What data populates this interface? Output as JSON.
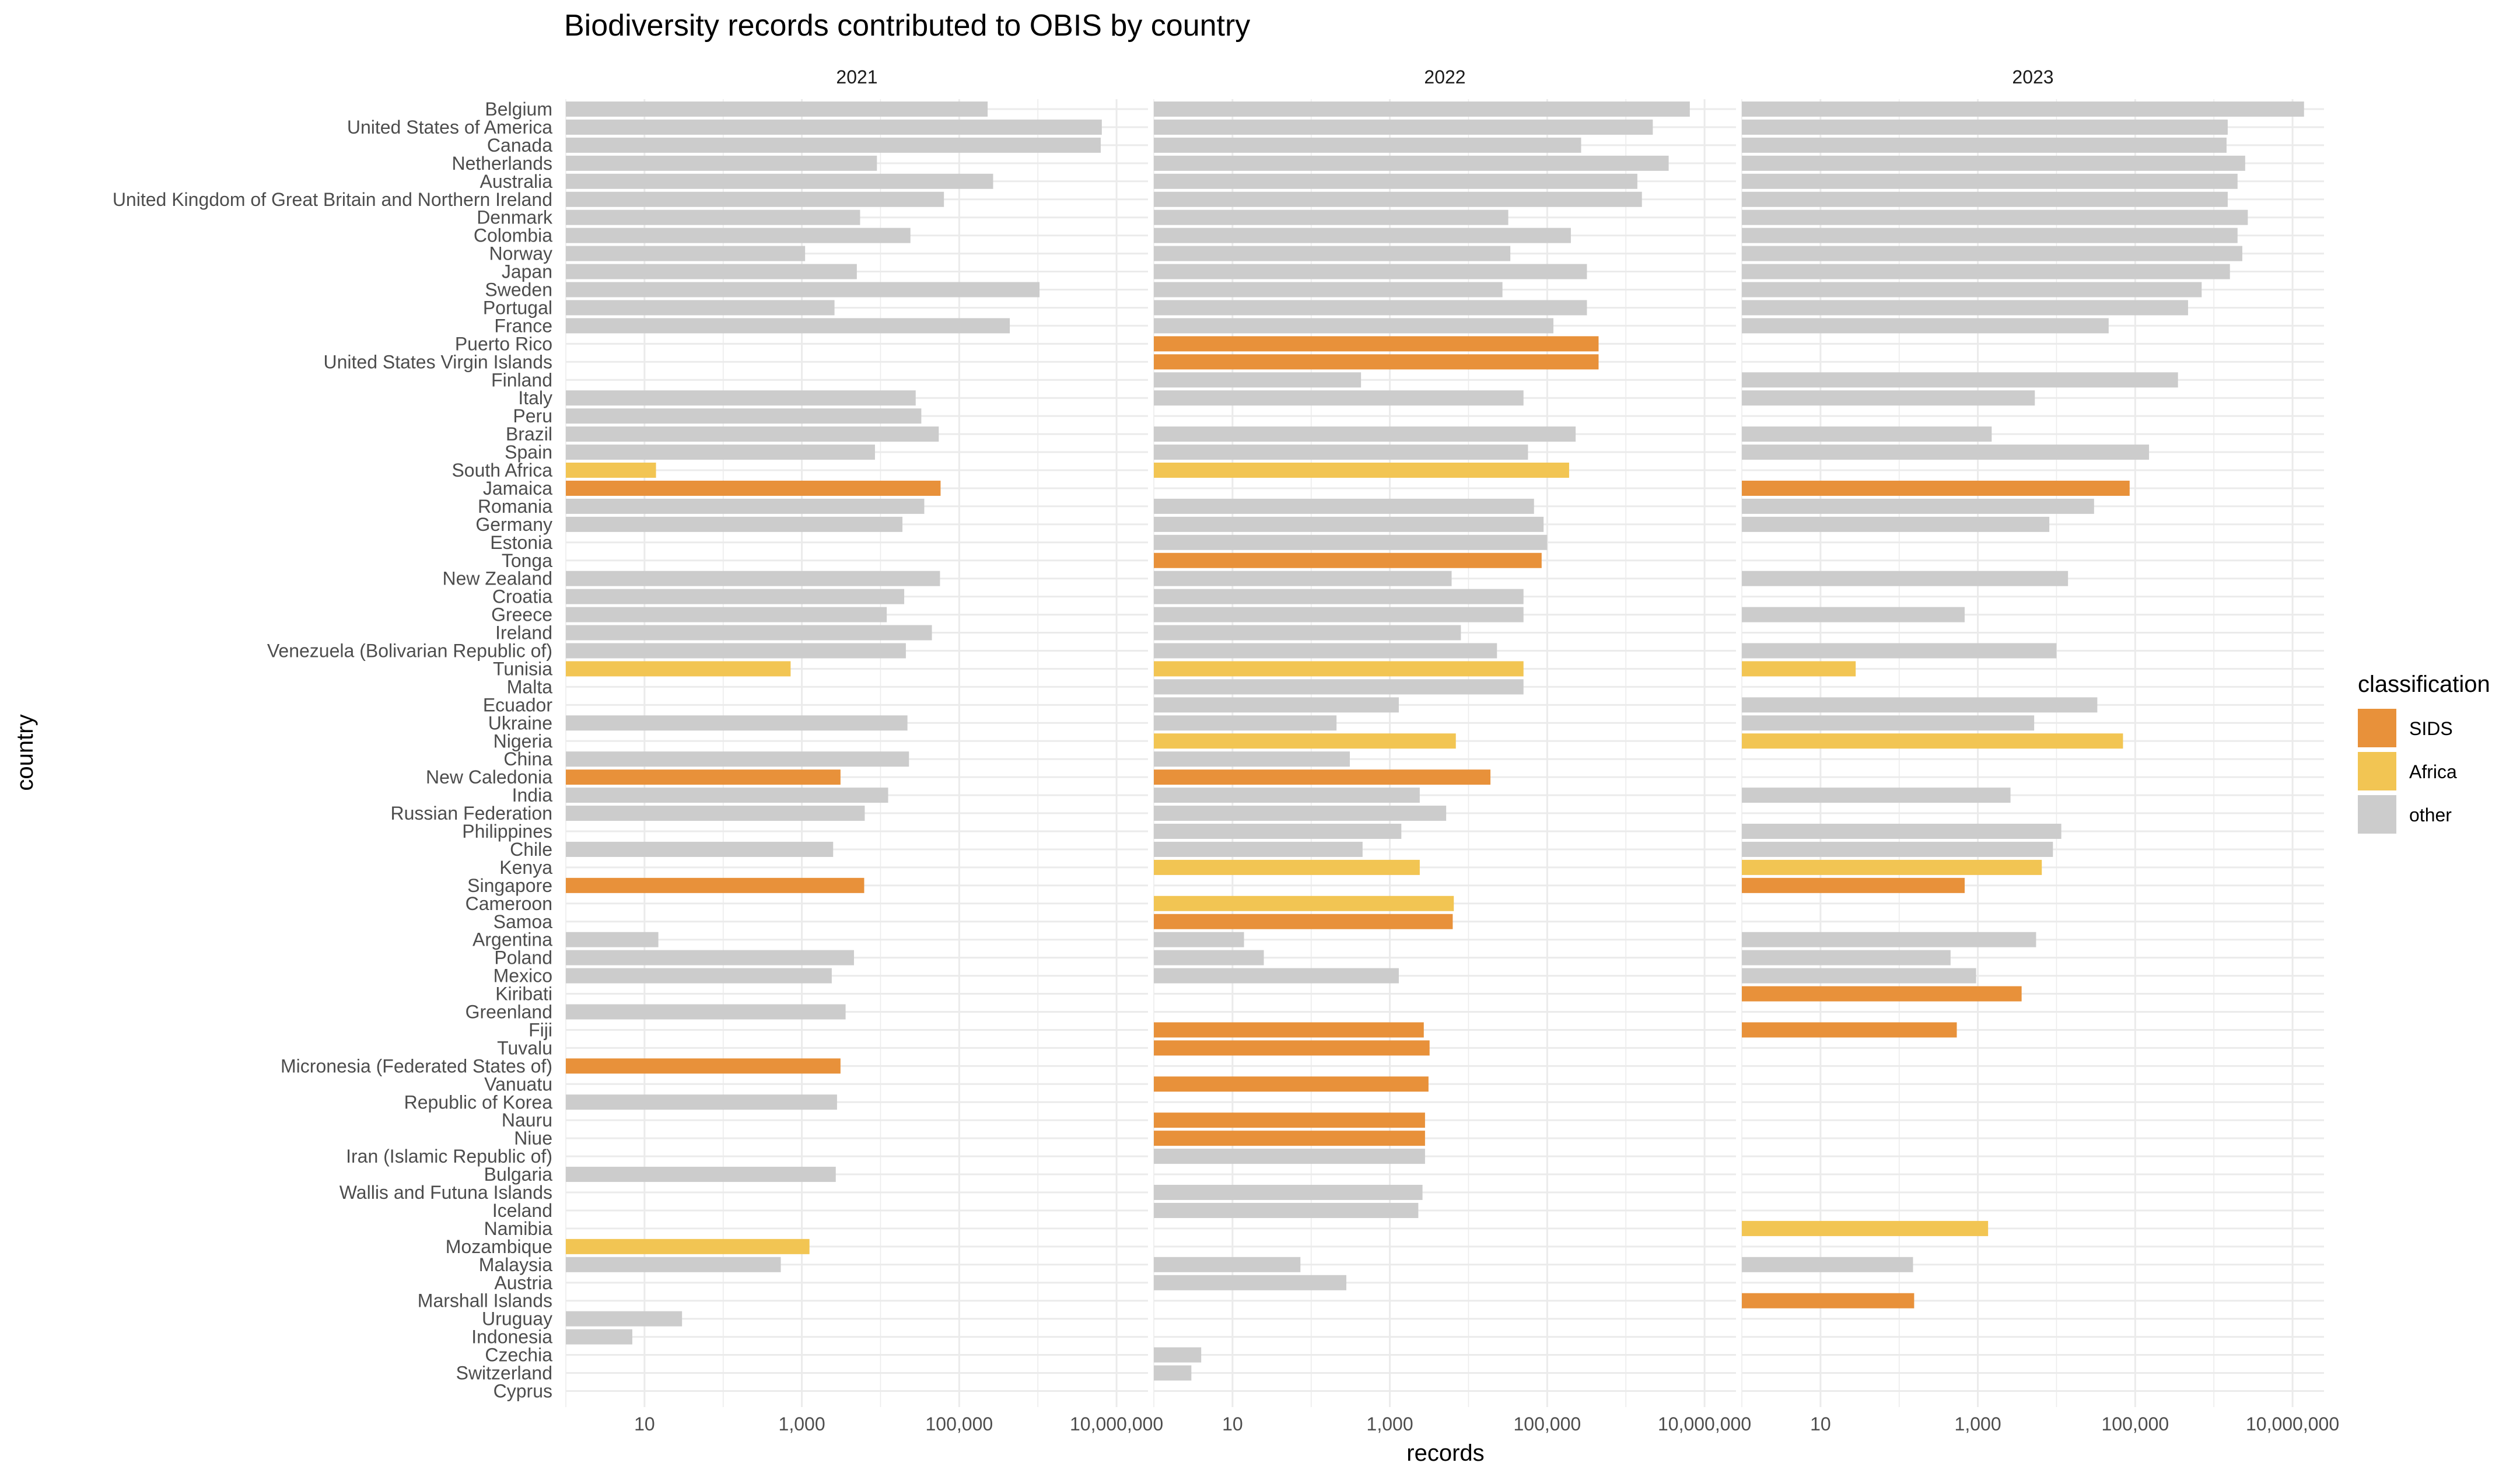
{
  "chart_data": {
    "type": "bar",
    "orientation": "horizontal",
    "title": "Biodiversity records contributed to OBIS by country",
    "xlabel": "records",
    "ylabel": "country",
    "x_scale": "log10",
    "x_ticks": [
      10,
      1000,
      100000,
      10000000
    ],
    "x_tick_labels": [
      "10",
      "1,000",
      "100,000",
      "10,000,000"
    ],
    "xlim": [
      1,
      15000000
    ],
    "grid": true,
    "legend": {
      "title": "classification",
      "placement": "right",
      "entries": [
        {
          "label": "SIDS",
          "color": "#E8913A"
        },
        {
          "label": "Africa",
          "color": "#F2C553"
        },
        {
          "label": "other",
          "color": "#CCCCCC"
        }
      ]
    },
    "panels": [
      "2021",
      "2022",
      "2023"
    ],
    "countries": [
      {
        "name": "Belgium",
        "class": "other",
        "values": [
          230000,
          6500000,
          14000000
        ]
      },
      {
        "name": "United States of America",
        "class": "other",
        "values": [
          6500000,
          2200000,
          1500000
        ]
      },
      {
        "name": "Canada",
        "class": "other",
        "values": [
          6300000,
          270000,
          1450000
        ]
      },
      {
        "name": "Netherlands",
        "class": "other",
        "values": [
          9000,
          3500000,
          2500000
        ]
      },
      {
        "name": "Australia",
        "class": "other",
        "values": [
          270000,
          1400000,
          2000000
        ]
      },
      {
        "name": "United Kingdom of Great Britain and Northern Ireland",
        "class": "other",
        "values": [
          64000,
          1600000,
          1500000
        ]
      },
      {
        "name": "Denmark",
        "class": "other",
        "values": [
          5500,
          32000,
          2700000
        ]
      },
      {
        "name": "Colombia",
        "class": "other",
        "values": [
          24000,
          200000,
          2000000
        ]
      },
      {
        "name": "Norway",
        "class": "other",
        "values": [
          1100,
          34000,
          2300000
        ]
      },
      {
        "name": "Japan",
        "class": "other",
        "values": [
          5000,
          320000,
          1600000
        ]
      },
      {
        "name": "Sweden",
        "class": "other",
        "values": [
          1050000,
          27000,
          700000
        ]
      },
      {
        "name": "Portugal",
        "class": "other",
        "values": [
          2600,
          320000,
          470000
        ]
      },
      {
        "name": "France",
        "class": "other",
        "values": [
          440000,
          120000,
          46000
        ]
      },
      {
        "name": "Puerto Rico",
        "class": "SIDS",
        "values": [
          null,
          450000,
          null
        ]
      },
      {
        "name": "United States Virgin Islands",
        "class": "SIDS",
        "values": [
          null,
          450000,
          null
        ]
      },
      {
        "name": "Finland",
        "class": "other",
        "values": [
          null,
          430,
          350000
        ]
      },
      {
        "name": "Italy",
        "class": "other",
        "values": [
          28000,
          50000,
          5300
        ]
      },
      {
        "name": "Peru",
        "class": "other",
        "values": [
          33000,
          null,
          null
        ]
      },
      {
        "name": "Brazil",
        "class": "other",
        "values": [
          55000,
          230000,
          1500
        ]
      },
      {
        "name": "Spain",
        "class": "other",
        "values": [
          8500,
          57000,
          150000
        ]
      },
      {
        "name": "South Africa",
        "class": "Africa",
        "values": [
          14,
          190000,
          null
        ]
      },
      {
        "name": "Jamaica",
        "class": "SIDS",
        "values": [
          58000,
          null,
          85000
        ]
      },
      {
        "name": "Romania",
        "class": "other",
        "values": [
          36000,
          68000,
          30000
        ]
      },
      {
        "name": "Germany",
        "class": "other",
        "values": [
          19000,
          90000,
          8100
        ]
      },
      {
        "name": "Estonia",
        "class": "other",
        "values": [
          null,
          100000,
          null
        ]
      },
      {
        "name": "Tonga",
        "class": "SIDS",
        "values": [
          null,
          85000,
          null
        ]
      },
      {
        "name": "New Zealand",
        "class": "other",
        "values": [
          57000,
          6100,
          14000
        ]
      },
      {
        "name": "Croatia",
        "class": "other",
        "values": [
          20000,
          50000,
          null
        ]
      },
      {
        "name": "Greece",
        "class": "other",
        "values": [
          12000,
          50000,
          680
        ]
      },
      {
        "name": "Ireland",
        "class": "other",
        "values": [
          45000,
          8000,
          null
        ]
      },
      {
        "name": "Venezuela (Bolivarian Republic of)",
        "class": "other",
        "values": [
          21000,
          23000,
          10000
        ]
      },
      {
        "name": "Tunisia",
        "class": "Africa",
        "values": [
          720,
          50000,
          28
        ]
      },
      {
        "name": "Malta",
        "class": "other",
        "values": [
          null,
          50000,
          null
        ]
      },
      {
        "name": "Ecuador",
        "class": "other",
        "values": [
          null,
          1300,
          33000
        ]
      },
      {
        "name": "Ukraine",
        "class": "other",
        "values": [
          22000,
          210,
          5200
        ]
      },
      {
        "name": "Nigeria",
        "class": "Africa",
        "values": [
          null,
          6900,
          70000
        ]
      },
      {
        "name": "China",
        "class": "other",
        "values": [
          23000,
          310,
          null
        ]
      },
      {
        "name": "New Caledonia",
        "class": "SIDS",
        "values": [
          3100,
          19000,
          null
        ]
      },
      {
        "name": "India",
        "class": "other",
        "values": [
          12500,
          2400,
          2600
        ]
      },
      {
        "name": "Russian Federation",
        "class": "other",
        "values": [
          6300,
          5200,
          null
        ]
      },
      {
        "name": "Philippines",
        "class": "other",
        "values": [
          null,
          1400,
          11500
        ]
      },
      {
        "name": "Chile",
        "class": "other",
        "values": [
          2500,
          450,
          9000
        ]
      },
      {
        "name": "Kenya",
        "class": "Africa",
        "values": [
          null,
          2400,
          6500
        ]
      },
      {
        "name": "Singapore",
        "class": "SIDS",
        "values": [
          6200,
          null,
          680
        ]
      },
      {
        "name": "Cameroon",
        "class": "Africa",
        "values": [
          null,
          6500,
          null
        ]
      },
      {
        "name": "Samoa",
        "class": "SIDS",
        "values": [
          null,
          6300,
          null
        ]
      },
      {
        "name": "Argentina",
        "class": "other",
        "values": [
          15,
          14,
          5500
        ]
      },
      {
        "name": "Poland",
        "class": "other",
        "values": [
          4600,
          25,
          450
        ]
      },
      {
        "name": "Mexico",
        "class": "other",
        "values": [
          2400,
          1300,
          950
        ]
      },
      {
        "name": "Kiribati",
        "class": "SIDS",
        "values": [
          null,
          null,
          3600
        ]
      },
      {
        "name": "Greenland",
        "class": "other",
        "values": [
          3600,
          null,
          null
        ]
      },
      {
        "name": "Fiji",
        "class": "SIDS",
        "values": [
          null,
          2700,
          540
        ]
      },
      {
        "name": "Tuvalu",
        "class": "SIDS",
        "values": [
          null,
          3200,
          null
        ]
      },
      {
        "name": "Micronesia (Federated States of)",
        "class": "SIDS",
        "values": [
          3100,
          null,
          null
        ]
      },
      {
        "name": "Vanuatu",
        "class": "SIDS",
        "values": [
          null,
          3100,
          null
        ]
      },
      {
        "name": "Republic of Korea",
        "class": "other",
        "values": [
          2800,
          null,
          null
        ]
      },
      {
        "name": "Nauru",
        "class": "SIDS",
        "values": [
          null,
          2800,
          null
        ]
      },
      {
        "name": "Niue",
        "class": "SIDS",
        "values": [
          null,
          2800,
          null
        ]
      },
      {
        "name": "Iran (Islamic Republic of)",
        "class": "other",
        "values": [
          null,
          2800,
          null
        ]
      },
      {
        "name": "Bulgaria",
        "class": "other",
        "values": [
          2700,
          null,
          null
        ]
      },
      {
        "name": "Wallis and Futuna Islands",
        "class": "other",
        "values": [
          null,
          2600,
          null
        ]
      },
      {
        "name": "Iceland",
        "class": "other",
        "values": [
          null,
          2300,
          null
        ]
      },
      {
        "name": "Namibia",
        "class": "Africa",
        "values": [
          null,
          null,
          1350
        ]
      },
      {
        "name": "Mozambique",
        "class": "Africa",
        "values": [
          1250,
          null,
          null
        ]
      },
      {
        "name": "Malaysia",
        "class": "other",
        "values": [
          540,
          73,
          150
        ]
      },
      {
        "name": "Austria",
        "class": "other",
        "values": [
          null,
          280,
          null
        ]
      },
      {
        "name": "Marshall Islands",
        "class": "SIDS",
        "values": [
          null,
          null,
          155
        ]
      },
      {
        "name": "Uruguay",
        "class": "other",
        "values": [
          30,
          null,
          null
        ]
      },
      {
        "name": "Indonesia",
        "class": "other",
        "values": [
          7,
          null,
          null
        ]
      },
      {
        "name": "Czechia",
        "class": "other",
        "values": [
          null,
          4,
          null
        ]
      },
      {
        "name": "Switzerland",
        "class": "other",
        "values": [
          null,
          3,
          null
        ]
      },
      {
        "name": "Cyprus",
        "class": "other",
        "values": [
          null,
          null,
          null
        ]
      }
    ]
  }
}
